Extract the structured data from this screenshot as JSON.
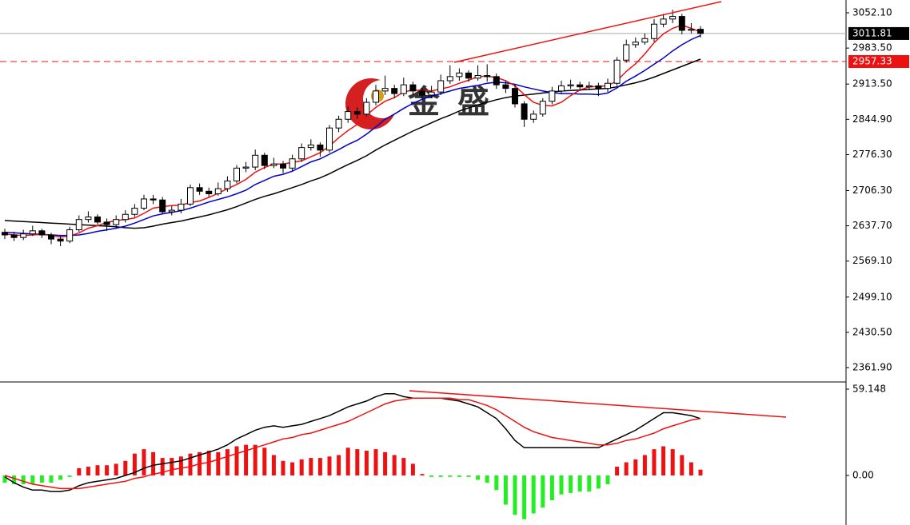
{
  "chart_data": [
    {
      "type": "candlestick",
      "watermark": "金盛",
      "up_color": "#ffffff",
      "down_color": "#000000",
      "edge_color": "#000000",
      "open": [
        2625,
        2620,
        2615,
        2622,
        2628,
        2620,
        2612,
        2608,
        2630,
        2650,
        2655,
        2645,
        2640,
        2650,
        2660,
        2672,
        2690,
        2688,
        2665,
        2668,
        2680,
        2712,
        2705,
        2700,
        2710,
        2725,
        2750,
        2752,
        2775,
        2755,
        2758,
        2750,
        2768,
        2790,
        2795,
        2785,
        2828,
        2845,
        2860,
        2855,
        2878,
        2900,
        2905,
        2895,
        2912,
        2900,
        2892,
        2898,
        2920,
        2928,
        2935,
        2925,
        2930,
        2928,
        2912,
        2905,
        2875,
        2845,
        2855,
        2880,
        2900,
        2910,
        2912,
        2908,
        2910,
        2905,
        2915,
        2960,
        2990,
        2995,
        3002,
        3030,
        3040,
        3045,
        3018,
        3020
      ],
      "high": [
        2632,
        2626,
        2630,
        2638,
        2632,
        2624,
        2618,
        2636,
        2658,
        2666,
        2660,
        2652,
        2658,
        2668,
        2680,
        2698,
        2698,
        2694,
        2676,
        2690,
        2718,
        2720,
        2712,
        2722,
        2734,
        2756,
        2762,
        2786,
        2780,
        2770,
        2764,
        2776,
        2798,
        2806,
        2800,
        2834,
        2852,
        2870,
        2868,
        2886,
        2912,
        2930,
        2912,
        2926,
        2918,
        2906,
        2910,
        2932,
        2950,
        2944,
        2940,
        2950,
        2952,
        2934,
        2920,
        2912,
        2880,
        2862,
        2886,
        2908,
        2920,
        2922,
        2918,
        2918,
        2916,
        2924,
        2966,
        3000,
        3004,
        3012,
        3040,
        3050,
        3058,
        3050,
        3032,
        3026
      ],
      "low": [
        2612,
        2608,
        2610,
        2618,
        2614,
        2602,
        2598,
        2604,
        2626,
        2644,
        2640,
        2628,
        2634,
        2644,
        2655,
        2668,
        2680,
        2660,
        2658,
        2662,
        2676,
        2698,
        2694,
        2696,
        2704,
        2720,
        2742,
        2746,
        2748,
        2750,
        2740,
        2744,
        2762,
        2784,
        2772,
        2780,
        2820,
        2838,
        2846,
        2850,
        2872,
        2892,
        2886,
        2890,
        2892,
        2884,
        2886,
        2892,
        2914,
        2920,
        2918,
        2920,
        2918,
        2904,
        2896,
        2868,
        2830,
        2838,
        2850,
        2874,
        2894,
        2904,
        2900,
        2902,
        2890,
        2898,
        2910,
        2955,
        2984,
        2990,
        2996,
        3024,
        3032,
        3010,
        3012,
        3004
      ],
      "close": [
        2620,
        2615,
        2622,
        2628,
        2620,
        2612,
        2608,
        2630,
        2650,
        2655,
        2645,
        2640,
        2650,
        2660,
        2672,
        2690,
        2688,
        2665,
        2668,
        2680,
        2712,
        2705,
        2700,
        2710,
        2725,
        2750,
        2752,
        2775,
        2755,
        2758,
        2750,
        2768,
        2790,
        2795,
        2785,
        2828,
        2845,
        2860,
        2855,
        2878,
        2900,
        2905,
        2895,
        2912,
        2900,
        2892,
        2898,
        2920,
        2928,
        2935,
        2925,
        2930,
        2928,
        2912,
        2905,
        2875,
        2845,
        2855,
        2880,
        2900,
        2910,
        2912,
        2908,
        2910,
        2905,
        2915,
        2960,
        2990,
        2995,
        3002,
        3030,
        3040,
        3045,
        3018,
        3020,
        3012
      ],
      "series": [
        {
          "color": "#000000",
          "values": [
            2648,
            2647,
            2646,
            2645,
            2644,
            2643,
            2642,
            2641,
            2640,
            2639,
            2638,
            2637,
            2636,
            2634,
            2633,
            2634,
            2637,
            2641,
            2644,
            2647,
            2651,
            2655,
            2659,
            2664,
            2669,
            2675,
            2682,
            2689,
            2695,
            2700,
            2706,
            2712,
            2718,
            2725,
            2731,
            2739,
            2748,
            2757,
            2765,
            2774,
            2785,
            2795,
            2804,
            2813,
            2822,
            2830,
            2838,
            2846,
            2853,
            2861,
            2867,
            2873,
            2878,
            2883,
            2887,
            2890,
            2892,
            2894,
            2896,
            2898,
            2900,
            2901,
            2902,
            2903,
            2904,
            2905,
            2908,
            2912,
            2916,
            2921,
            2927,
            2934,
            2941,
            2948,
            2955,
            2962
          ]
        },
        {
          "color": "#0000cc",
          "values": [
            2625,
            2624,
            2623,
            2622,
            2621,
            2620,
            2619,
            2619,
            2620,
            2623,
            2627,
            2630,
            2633,
            2637,
            2643,
            2650,
            2657,
            2661,
            2664,
            2667,
            2672,
            2678,
            2684,
            2689,
            2694,
            2700,
            2707,
            2718,
            2726,
            2734,
            2738,
            2744,
            2753,
            2762,
            2768,
            2777,
            2786,
            2796,
            2804,
            2816,
            2830,
            2845,
            2855,
            2866,
            2876,
            2884,
            2890,
            2895,
            2900,
            2905,
            2908,
            2911,
            2915,
            2917,
            2916,
            2913,
            2908,
            2904,
            2900,
            2897,
            2895,
            2895,
            2894,
            2894,
            2893,
            2896,
            2906,
            2919,
            2929,
            2940,
            2952,
            2964,
            2978,
            2990,
            3000,
            3008
          ]
        },
        {
          "color": "#ee1111",
          "values": [
            2622,
            2620,
            2619,
            2620,
            2621,
            2619,
            2616,
            2618,
            2624,
            2633,
            2638,
            2644,
            2648,
            2650,
            2653,
            2662,
            2672,
            2675,
            2677,
            2678,
            2683,
            2686,
            2693,
            2701,
            2710,
            2718,
            2728,
            2742,
            2751,
            2758,
            2758,
            2761,
            2764,
            2772,
            2780,
            2793,
            2809,
            2823,
            2835,
            2853,
            2868,
            2880,
            2887,
            2898,
            2902,
            2901,
            2900,
            2904,
            2908,
            2915,
            2921,
            2928,
            2929,
            2926,
            2920,
            2910,
            2893,
            2878,
            2872,
            2871,
            2878,
            2891,
            2902,
            2908,
            2909,
            2910,
            2920,
            2938,
            2953,
            2972,
            2994,
            3011,
            3022,
            3028,
            3022,
            3015
          ]
        }
      ],
      "last_price": 3011.81,
      "last_price_color": "#000000",
      "alert_price": 2957.33,
      "alert_color": "#ee1111",
      "ylim": [
        2335.5,
        3077.0
      ],
      "yticks": [
        {
          "value": 3052.1,
          "label": "3052.10"
        },
        {
          "value": 2983.5,
          "label": "2983.50"
        },
        {
          "value": 2913.5,
          "label": "2913.50"
        },
        {
          "value": 2844.9,
          "label": "2844.90"
        },
        {
          "value": 2776.3,
          "label": "2776.30"
        },
        {
          "value": 2706.3,
          "label": "2706.30"
        },
        {
          "value": 2637.7,
          "label": "2637.70"
        },
        {
          "value": 2569.1,
          "label": "2569.10"
        },
        {
          "value": 2499.1,
          "label": "2499.10"
        },
        {
          "value": 2430.5,
          "label": "2430.50"
        },
        {
          "value": 2361.9,
          "label": "2361.90"
        }
      ]
    },
    {
      "type": "macd",
      "positive_color": "#ee1111",
      "negative_color": "#22ee22",
      "histogram": [
        -5,
        -6,
        -6,
        -6,
        -5,
        -5,
        -3,
        -1,
        5,
        6,
        7,
        7,
        8,
        10,
        15,
        18,
        16,
        12,
        12,
        13,
        15,
        16,
        17,
        16,
        18,
        20,
        21,
        21,
        19,
        14,
        10,
        9,
        11,
        12,
        12,
        13,
        14,
        19,
        18,
        17,
        18,
        16,
        14,
        12,
        8,
        1,
        -1,
        -1,
        -1,
        -1,
        -1,
        -3,
        -5,
        -10,
        -20,
        -27,
        -30,
        -26,
        -22,
        -17,
        -13,
        -12,
        -11,
        -11,
        -9,
        -6,
        6,
        9,
        11,
        14,
        18,
        20,
        18,
        14,
        9,
        4
      ],
      "series": [
        {
          "color": "#000000",
          "values": [
            -1,
            -5,
            -8,
            -10,
            -10,
            -11,
            -11,
            -10,
            -7,
            -5,
            -4,
            -3,
            -2,
            0,
            2,
            5,
            7,
            8,
            9,
            10,
            12,
            14,
            16,
            18,
            21,
            25,
            28,
            31,
            33,
            34,
            33,
            34,
            35,
            37,
            39,
            41,
            44,
            47,
            49,
            51,
            54,
            56,
            56,
            54,
            53,
            53,
            53,
            53,
            52,
            51,
            49,
            47,
            43,
            39,
            32,
            24,
            19,
            19,
            19,
            19,
            19,
            19,
            19,
            19,
            19,
            22,
            25,
            28,
            31,
            35,
            39,
            43,
            43,
            42,
            41,
            39
          ]
        },
        {
          "color": "#ee1111",
          "values": [
            0,
            -2,
            -4,
            -6,
            -7,
            -8,
            -9,
            -9,
            -9,
            -8,
            -7,
            -6,
            -5,
            -4,
            -2,
            -1,
            1,
            2,
            4,
            5,
            6,
            8,
            9,
            11,
            13,
            15,
            17,
            19,
            21,
            23,
            25,
            26,
            28,
            29,
            31,
            33,
            35,
            37,
            40,
            43,
            46,
            49,
            51,
            52,
            53,
            53,
            53,
            53,
            53,
            52,
            52,
            50,
            48,
            45,
            41,
            37,
            33,
            30,
            28,
            26,
            25,
            24,
            23,
            22,
            21,
            21,
            22,
            24,
            25,
            27,
            29,
            32,
            34,
            36,
            38,
            39
          ]
        }
      ],
      "ylim": [
        -33.96,
        63.53
      ],
      "yticks": [
        59.148,
        {
          "value": 0,
          "label": "0.00"
        }
      ]
    }
  ]
}
